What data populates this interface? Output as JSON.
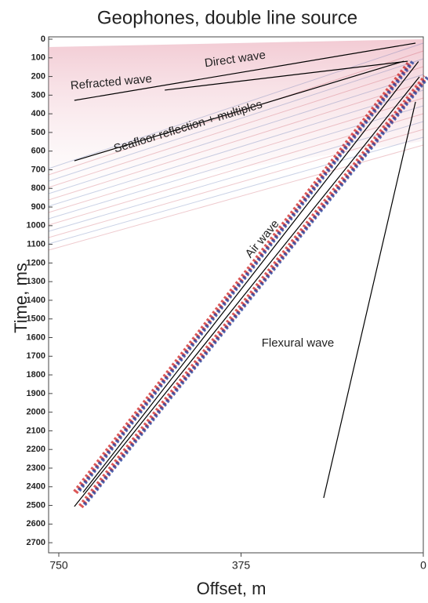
{
  "chart_data": {
    "type": "seismic",
    "title": "Geophones, double line source",
    "xlabel": "Offset, m",
    "ylabel": "Time, ms",
    "xlim": [
      750,
      0
    ],
    "xticks": [
      750,
      375,
      0
    ],
    "ylim": [
      0,
      2750
    ],
    "yticks": [
      0,
      100,
      200,
      300,
      400,
      500,
      600,
      700,
      800,
      900,
      1000,
      1100,
      1200,
      1300,
      1400,
      1500,
      1600,
      1700,
      1800,
      1900,
      2000,
      2100,
      2200,
      2300,
      2400,
      2500,
      2600,
      2700
    ],
    "line_color": "#000000",
    "lines": [
      {
        "x": [
          718,
          16
        ],
        "y": [
          328,
          21
        ]
      },
      {
        "x": [
          532,
          32
        ],
        "y": [
          273,
          118
        ]
      },
      {
        "x": [
          718,
          40
        ],
        "y": [
          652,
          118
        ]
      },
      {
        "x": [
          718,
          8
        ],
        "y": [
          2506,
          202
        ]
      },
      {
        "x": [
          700,
          10
        ],
        "y": [
          2430,
          120
        ]
      },
      {
        "x": [
          205,
          16
        ],
        "y": [
          2460,
          336
        ]
      }
    ],
    "annotations": [
      "Direct wave",
      "Refracted wave",
      "Seafloor reflection + multiples",
      "Air wave",
      "Flexural wave"
    ]
  }
}
